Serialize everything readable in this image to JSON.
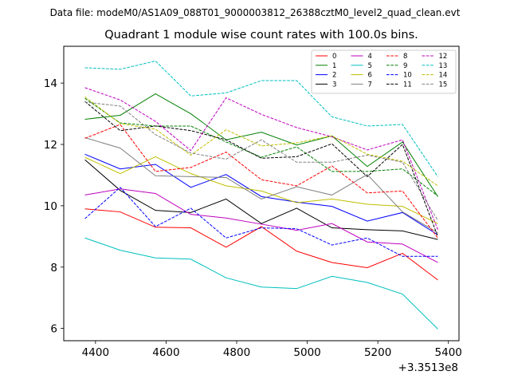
{
  "figure": {
    "suptitle": "Data file: modeM0/AS1A09_088T01_9000003812_26388cztM0_level2_quad_clean.evt"
  },
  "chart_data": {
    "type": "line",
    "title": "Quadrant 1 module wise count rates with 100.0s bins.",
    "xlabel": "",
    "ylabel": "",
    "x_offset_label": "+3.3513e8",
    "x": [
      4370,
      4470,
      4570,
      4670,
      4770,
      4870,
      4970,
      5070,
      5170,
      5270,
      5370
    ],
    "xlim": [
      4310,
      5430
    ],
    "ylim": [
      5.6,
      15.2
    ],
    "xticks": [
      4400,
      4600,
      4800,
      5000,
      5200,
      5400
    ],
    "xtick_labels": [
      "4400",
      "4600",
      "4800",
      "5000",
      "5200",
      "5400"
    ],
    "yticks": [
      6,
      8,
      10,
      12,
      14
    ],
    "ytick_labels": [
      "6",
      "8",
      "10",
      "12",
      "14"
    ],
    "legend_position": "top-right",
    "legend_columns": 4,
    "series": [
      {
        "name": "0",
        "color": "#ff0000",
        "dash": "solid",
        "values": [
          9.9,
          9.8,
          9.3,
          9.28,
          8.65,
          9.32,
          8.52,
          8.15,
          7.98,
          8.45,
          7.58
        ]
      },
      {
        "name": "1",
        "color": "#008000",
        "dash": "solid",
        "values": [
          12.82,
          12.95,
          13.65,
          13.0,
          12.15,
          12.4,
          11.98,
          12.28,
          11.28,
          12.08,
          10.3
        ]
      },
      {
        "name": "2",
        "color": "#0000ff",
        "dash": "solid",
        "values": [
          11.68,
          11.2,
          11.35,
          10.6,
          11.02,
          10.3,
          10.12,
          9.98,
          9.5,
          9.78,
          9.05
        ]
      },
      {
        "name": "3",
        "color": "#000000",
        "dash": "solid",
        "values": [
          11.5,
          10.5,
          9.85,
          9.78,
          10.22,
          9.42,
          9.92,
          9.28,
          9.22,
          9.18,
          8.9
        ]
      },
      {
        "name": "4",
        "color": "#bf00bf",
        "dash": "solid",
        "values": [
          10.35,
          10.55,
          10.4,
          9.72,
          9.6,
          9.4,
          9.2,
          9.42,
          8.82,
          8.75,
          8.15
        ]
      },
      {
        "name": "5",
        "color": "#00bfbf",
        "dash": "solid",
        "values": [
          8.95,
          8.55,
          8.3,
          8.26,
          7.65,
          7.35,
          7.3,
          7.7,
          7.5,
          7.12,
          5.98
        ]
      },
      {
        "name": "6",
        "color": "#bfbf00",
        "dash": "solid",
        "values": [
          11.58,
          11.05,
          11.6,
          11.05,
          10.65,
          10.48,
          10.1,
          10.22,
          10.05,
          9.98,
          9.42
        ]
      },
      {
        "name": "7",
        "color": "#808080",
        "dash": "solid",
        "values": [
          12.22,
          11.88,
          10.98,
          10.95,
          10.92,
          10.22,
          10.62,
          10.35,
          11.02,
          9.8,
          9.12
        ]
      },
      {
        "name": "8",
        "color": "#ff0000",
        "dash": "dashed",
        "values": [
          12.2,
          12.65,
          11.12,
          11.25,
          11.75,
          10.85,
          10.65,
          11.3,
          10.42,
          10.48,
          8.95
        ]
      },
      {
        "name": "9",
        "color": "#008000",
        "dash": "dashed",
        "values": [
          13.5,
          12.7,
          12.6,
          12.6,
          12.08,
          11.58,
          11.92,
          11.12,
          11.12,
          11.2,
          10.32
        ]
      },
      {
        "name": "10",
        "color": "#0000ff",
        "dash": "dashed",
        "values": [
          9.58,
          10.6,
          9.32,
          9.92,
          8.95,
          9.28,
          9.25,
          8.72,
          8.95,
          8.35,
          8.35
        ]
      },
      {
        "name": "11",
        "color": "#000000",
        "dash": "dashed",
        "values": [
          13.4,
          12.45,
          12.6,
          12.45,
          12.15,
          11.55,
          11.6,
          12.02,
          10.95,
          12.0,
          9.0
        ]
      },
      {
        "name": "12",
        "color": "#bf00bf",
        "dash": "dashed",
        "values": [
          13.85,
          13.45,
          12.75,
          11.8,
          13.52,
          12.98,
          12.55,
          12.25,
          11.82,
          12.15,
          9.22
        ]
      },
      {
        "name": "13",
        "color": "#00bfbf",
        "dash": "dashed",
        "values": [
          14.5,
          14.45,
          14.72,
          13.58,
          13.68,
          14.08,
          14.08,
          12.9,
          12.6,
          12.65,
          10.95
        ]
      },
      {
        "name": "14",
        "color": "#bfbf00",
        "dash": "dashed",
        "values": [
          13.55,
          12.68,
          12.5,
          11.65,
          12.48,
          11.95,
          12.05,
          12.28,
          11.68,
          11.45,
          10.65
        ]
      },
      {
        "name": "15",
        "color": "#808080",
        "dash": "dashed",
        "values": [
          13.38,
          13.25,
          12.32,
          11.72,
          11.52,
          12.15,
          11.42,
          11.42,
          11.65,
          11.42,
          9.52
        ]
      }
    ]
  }
}
